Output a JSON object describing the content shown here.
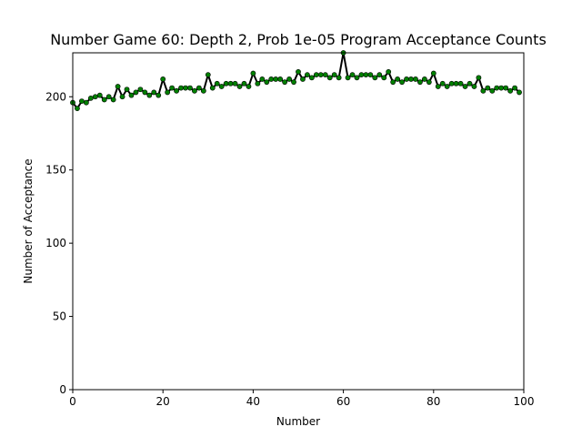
{
  "chart_data": {
    "type": "line",
    "title": "Number Game 60: Depth 2, Prob 1e-05 Program Acceptance Counts",
    "xlabel": "Number",
    "ylabel": "Number of Acceptance",
    "xlim": [
      0,
      100
    ],
    "ylim": [
      0,
      230
    ],
    "x_ticks": [
      0,
      20,
      40,
      60,
      80,
      100
    ],
    "y_ticks": [
      0,
      50,
      100,
      150,
      200
    ],
    "grid": false,
    "line_color": "#000000",
    "marker_color": "#008000",
    "x": [
      0,
      1,
      2,
      3,
      4,
      5,
      6,
      7,
      8,
      9,
      10,
      11,
      12,
      13,
      14,
      15,
      16,
      17,
      18,
      19,
      20,
      21,
      22,
      23,
      24,
      25,
      26,
      27,
      28,
      29,
      30,
      31,
      32,
      33,
      34,
      35,
      36,
      37,
      38,
      39,
      40,
      41,
      42,
      43,
      44,
      45,
      46,
      47,
      48,
      49,
      50,
      51,
      52,
      53,
      54,
      55,
      56,
      57,
      58,
      59,
      60,
      61,
      62,
      63,
      64,
      65,
      66,
      67,
      68,
      69,
      70,
      71,
      72,
      73,
      74,
      75,
      76,
      77,
      78,
      79,
      80,
      81,
      82,
      83,
      84,
      85,
      86,
      87,
      88,
      89,
      90,
      91,
      92,
      93,
      94,
      95,
      96,
      97,
      98,
      99
    ],
    "values": [
      196,
      192,
      197,
      196,
      199,
      200,
      201,
      198,
      200,
      198,
      207,
      200,
      205,
      201,
      203,
      205,
      203,
      201,
      203,
      201,
      212,
      203,
      206,
      204,
      206,
      206,
      206,
      204,
      206,
      204,
      215,
      206,
      209,
      207,
      209,
      209,
      209,
      207,
      209,
      207,
      216,
      209,
      212,
      210,
      212,
      212,
      212,
      210,
      212,
      210,
      217,
      212,
      215,
      213,
      215,
      215,
      215,
      213,
      215,
      213,
      230,
      213,
      215,
      213,
      215,
      215,
      215,
      213,
      215,
      213,
      217,
      210,
      212,
      210,
      212,
      212,
      212,
      210,
      212,
      210,
      216,
      207,
      209,
      207,
      209,
      209,
      209,
      207,
      209,
      207,
      213,
      204,
      206,
      204,
      206,
      206,
      206,
      204,
      206,
      203
    ]
  }
}
